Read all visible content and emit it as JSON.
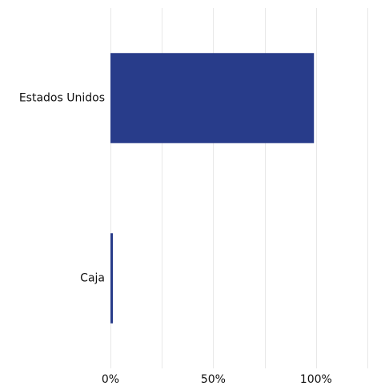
{
  "chart_data": {
    "type": "bar",
    "orientation": "horizontal",
    "categories": [
      "Estados Unidos",
      "Caja"
    ],
    "values": [
      99,
      1
    ],
    "unit": "%",
    "xlim": [
      0,
      125
    ],
    "xticks": [
      0,
      50,
      100
    ],
    "xtick_labels": [
      "0%",
      "50%",
      "100%"
    ],
    "grid": true,
    "title": "",
    "xlabel": "",
    "ylabel": "",
    "bar_color": "#283c8a",
    "grid_color": "#e8e8e8"
  }
}
